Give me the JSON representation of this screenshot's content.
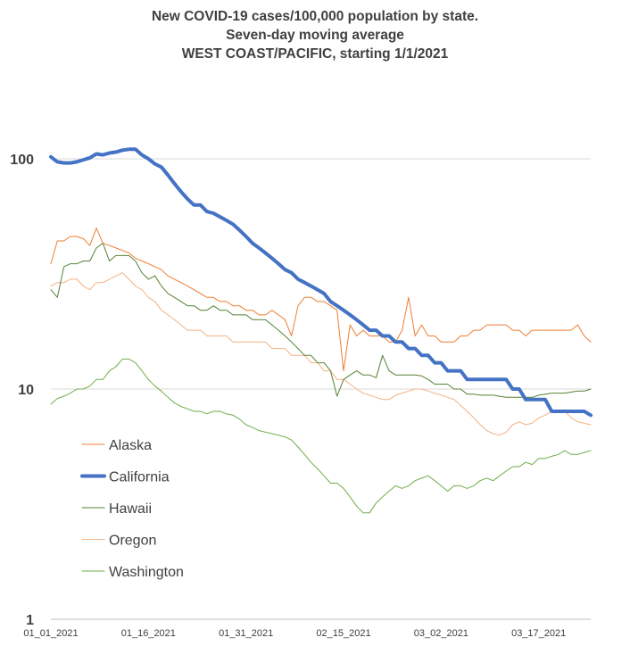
{
  "chart_data": {
    "type": "line",
    "title_lines": [
      "New COVID-19 cases/100,000 population by state.",
      "Seven-day moving average",
      "WEST COAST/PACIFIC, starting 1/1/2021"
    ],
    "y_scale": "log",
    "ylim": [
      1,
      100
    ],
    "y_ticks": [
      "1",
      "10",
      "100"
    ],
    "x_tick_labels": [
      "01_01_2021",
      "01_16_2021",
      "01_31_2021",
      "02_15_2021",
      "03_02_2021",
      "03_17_2021"
    ],
    "grid": true,
    "legend_position": "bottom-left",
    "series": [
      {
        "name": "Alaska",
        "color": "#ED7D31",
        "width": 1,
        "values": [
          35,
          44,
          44,
          46,
          46,
          45,
          42,
          50,
          43,
          42,
          41,
          40,
          39,
          37,
          36,
          35,
          34,
          33,
          31,
          30,
          29,
          28,
          27,
          26,
          25,
          25,
          24,
          24,
          23,
          23,
          22,
          22,
          21,
          21,
          22,
          21,
          20,
          17,
          23,
          25,
          25,
          24,
          24,
          23,
          22,
          12,
          19,
          17,
          18,
          17,
          17,
          17,
          16,
          16,
          18,
          25,
          17,
          19,
          17,
          17,
          16,
          16,
          16,
          17,
          17,
          18,
          18,
          19,
          19,
          19,
          19,
          18,
          18,
          17,
          18,
          18,
          18,
          18,
          18,
          18,
          18,
          19,
          17,
          16
        ]
      },
      {
        "name": "California",
        "color": "#4472C4",
        "width": 4,
        "values": [
          102,
          97,
          96,
          96,
          97,
          99,
          101,
          105,
          104,
          106,
          107,
          109,
          110,
          110,
          104,
          100,
          95,
          92,
          85,
          78,
          72,
          67,
          63,
          63,
          59,
          58,
          56,
          54,
          52,
          49,
          46,
          43,
          41,
          39,
          37,
          35,
          33,
          32,
          30,
          29,
          28,
          27,
          26,
          24,
          23,
          22,
          21,
          20,
          19,
          18,
          18,
          17,
          17,
          16,
          16,
          15,
          15,
          14,
          14,
          13,
          13,
          12,
          12,
          12,
          11,
          11,
          11,
          11,
          11,
          11,
          11,
          10,
          10,
          9,
          9,
          9,
          9,
          8,
          8,
          8,
          8,
          8,
          8,
          7.7
        ]
      },
      {
        "name": "Hawaii",
        "color": "#548235",
        "width": 1,
        "values": [
          27,
          25,
          34,
          35,
          35,
          36,
          36,
          41,
          43,
          36,
          38,
          38,
          38,
          36,
          32,
          30,
          31,
          28,
          26,
          25,
          24,
          23,
          23,
          22,
          22,
          23,
          22,
          22,
          21,
          21,
          21,
          20,
          20,
          20,
          19,
          18,
          17,
          16,
          15,
          14,
          14,
          13,
          13,
          12,
          9.3,
          11,
          11.5,
          12,
          11.5,
          11.5,
          11.2,
          14,
          12,
          11.5,
          11.5,
          11.5,
          11.5,
          11.4,
          11,
          10.5,
          10.5,
          10.5,
          10,
          10,
          9.5,
          9.5,
          9.4,
          9.4,
          9.4,
          9.3,
          9.2,
          9.2,
          9.2,
          9.2,
          9.2,
          9.4,
          9.5,
          9.6,
          9.6,
          9.6,
          9.7,
          9.8,
          9.8,
          10
        ]
      },
      {
        "name": "Oregon",
        "color": "#F4B183",
        "width": 1,
        "values": [
          28,
          29,
          29,
          30,
          30,
          28,
          27,
          29,
          29,
          30,
          31,
          32,
          30,
          28,
          27,
          25,
          24,
          22,
          21,
          20,
          19,
          18,
          18,
          18,
          17,
          17,
          17,
          17,
          16,
          16,
          16,
          16,
          16,
          16,
          15,
          15,
          15,
          14,
          14,
          14,
          13,
          13,
          12,
          12,
          11,
          11,
          10.5,
          10,
          9.6,
          9.4,
          9.2,
          9.0,
          9.0,
          9.4,
          9.6,
          9.8,
          10,
          10,
          9.8,
          9.6,
          9.4,
          9.2,
          9,
          8.5,
          8,
          7.5,
          7,
          6.6,
          6.4,
          6.3,
          6.5,
          7,
          7.2,
          7,
          7.1,
          7.5,
          7.7,
          8,
          8,
          8,
          7.5,
          7.2,
          7.1,
          7
        ]
      },
      {
        "name": "Washington",
        "color": "#70AD47",
        "width": 1,
        "values": [
          8.6,
          9.1,
          9.3,
          9.6,
          10,
          10,
          10.3,
          11,
          11,
          12,
          12.5,
          13.5,
          13.5,
          13,
          12,
          11,
          10.3,
          9.8,
          9.2,
          8.7,
          8.4,
          8.2,
          8,
          8,
          7.8,
          8,
          8,
          7.8,
          7.7,
          7.4,
          7,
          6.8,
          6.6,
          6.5,
          6.4,
          6.3,
          6.2,
          6,
          5.6,
          5.2,
          4.8,
          4.5,
          4.2,
          3.9,
          3.9,
          3.7,
          3.4,
          3.1,
          2.9,
          2.9,
          3.2,
          3.4,
          3.6,
          3.8,
          3.7,
          3.8,
          4.0,
          4.1,
          4.2,
          4.0,
          3.8,
          3.6,
          3.8,
          3.8,
          3.7,
          3.8,
          4.0,
          4.1,
          4.0,
          4.2,
          4.4,
          4.6,
          4.6,
          4.8,
          4.7,
          5.0,
          5.0,
          5.1,
          5.2,
          5.4,
          5.2,
          5.2,
          5.3,
          5.4
        ]
      }
    ]
  }
}
